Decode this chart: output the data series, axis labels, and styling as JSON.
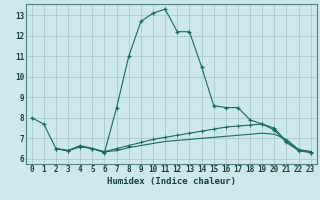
{
  "xlabel": "Humidex (Indice chaleur)",
  "bg_color": "#cce8e8",
  "grid_color": "#aacccc",
  "line_color": "#1a6b5a",
  "xlim": [
    -0.5,
    23.5
  ],
  "ylim": [
    5.75,
    13.55
  ],
  "xticks": [
    0,
    1,
    2,
    3,
    4,
    5,
    6,
    7,
    8,
    9,
    10,
    11,
    12,
    13,
    14,
    15,
    16,
    17,
    18,
    19,
    20,
    21,
    22,
    23
  ],
  "yticks": [
    6,
    7,
    8,
    9,
    10,
    11,
    12,
    13
  ],
  "series1_x": [
    0,
    1,
    2,
    3,
    4,
    5,
    6,
    7,
    8,
    9,
    10,
    11,
    12,
    13,
    14,
    15,
    16,
    17,
    18,
    19,
    20,
    21,
    22,
    23
  ],
  "series1_y": [
    8.0,
    7.7,
    6.5,
    6.4,
    6.6,
    6.5,
    6.3,
    8.5,
    11.0,
    12.7,
    13.1,
    13.3,
    12.2,
    12.2,
    10.5,
    8.6,
    8.5,
    8.5,
    7.9,
    7.7,
    7.4,
    6.8,
    6.4,
    6.3
  ],
  "series2_x": [
    2,
    3,
    4,
    5,
    6,
    7,
    8,
    9,
    10,
    11,
    12,
    13,
    14,
    15,
    16,
    17,
    18,
    19,
    20,
    21,
    22,
    23
  ],
  "series2_y": [
    6.5,
    6.4,
    6.65,
    6.5,
    6.35,
    6.5,
    6.65,
    6.8,
    6.95,
    7.05,
    7.15,
    7.25,
    7.35,
    7.45,
    7.55,
    7.6,
    7.65,
    7.7,
    7.5,
    6.85,
    6.45,
    6.35
  ],
  "series3_x": [
    2,
    3,
    4,
    5,
    6,
    7,
    8,
    9,
    10,
    11,
    12,
    13,
    14,
    15,
    16,
    17,
    18,
    19,
    20,
    21,
    22,
    23
  ],
  "series3_y": [
    6.5,
    6.4,
    6.6,
    6.5,
    6.35,
    6.4,
    6.55,
    6.65,
    6.75,
    6.85,
    6.9,
    6.95,
    7.0,
    7.05,
    7.1,
    7.15,
    7.2,
    7.25,
    7.2,
    6.95,
    6.45,
    6.35
  ]
}
